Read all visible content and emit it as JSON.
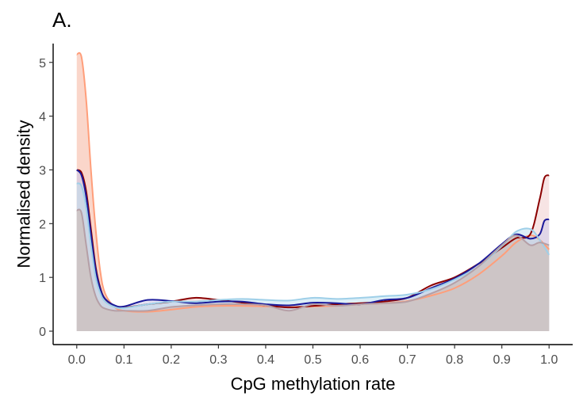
{
  "panel_label": "A.",
  "chart_data": {
    "type": "area",
    "title": "",
    "xlabel": "CpG methylation rate",
    "ylabel": "Normalised density",
    "xlim": [
      -0.05,
      1.05
    ],
    "ylim": [
      -0.25,
      5.35
    ],
    "x_ticks": [
      "0.0",
      "0.1",
      "0.2",
      "0.3",
      "0.4",
      "0.5",
      "0.6",
      "0.7",
      "0.8",
      "0.9",
      "1.0"
    ],
    "y_ticks": [
      "0",
      "1",
      "2",
      "3",
      "4",
      "5"
    ],
    "grid": false,
    "legend": "none",
    "series": [
      {
        "line_color": "#ff9e7a",
        "fill_color": "#f6b49e",
        "fill_opacity": 0.55,
        "points": [
          [
            0.0,
            5.15
          ],
          [
            0.01,
            5.1
          ],
          [
            0.02,
            4.3
          ],
          [
            0.03,
            3.0
          ],
          [
            0.04,
            1.9
          ],
          [
            0.05,
            1.1
          ],
          [
            0.06,
            0.7
          ],
          [
            0.08,
            0.45
          ],
          [
            0.1,
            0.38
          ],
          [
            0.15,
            0.36
          ],
          [
            0.2,
            0.4
          ],
          [
            0.25,
            0.45
          ],
          [
            0.3,
            0.47
          ],
          [
            0.35,
            0.47
          ],
          [
            0.4,
            0.46
          ],
          [
            0.45,
            0.45
          ],
          [
            0.5,
            0.46
          ],
          [
            0.55,
            0.47
          ],
          [
            0.6,
            0.5
          ],
          [
            0.65,
            0.52
          ],
          [
            0.7,
            0.56
          ],
          [
            0.75,
            0.66
          ],
          [
            0.8,
            0.8
          ],
          [
            0.85,
            1.05
          ],
          [
            0.9,
            1.4
          ],
          [
            0.93,
            1.65
          ],
          [
            0.96,
            1.78
          ],
          [
            0.98,
            1.7
          ],
          [
            1.0,
            1.52
          ]
        ]
      },
      {
        "line_color": "#8b0000",
        "fill_color": "#efc9c9",
        "fill_opacity": 0.5,
        "points": [
          [
            0.0,
            3.0
          ],
          [
            0.01,
            2.95
          ],
          [
            0.02,
            2.6
          ],
          [
            0.03,
            1.9
          ],
          [
            0.04,
            1.2
          ],
          [
            0.05,
            0.8
          ],
          [
            0.06,
            0.6
          ],
          [
            0.08,
            0.47
          ],
          [
            0.1,
            0.44
          ],
          [
            0.15,
            0.5
          ],
          [
            0.2,
            0.55
          ],
          [
            0.25,
            0.62
          ],
          [
            0.3,
            0.58
          ],
          [
            0.35,
            0.53
          ],
          [
            0.4,
            0.48
          ],
          [
            0.45,
            0.44
          ],
          [
            0.5,
            0.47
          ],
          [
            0.55,
            0.5
          ],
          [
            0.6,
            0.52
          ],
          [
            0.65,
            0.55
          ],
          [
            0.7,
            0.62
          ],
          [
            0.75,
            0.85
          ],
          [
            0.8,
            1.0
          ],
          [
            0.85,
            1.25
          ],
          [
            0.9,
            1.55
          ],
          [
            0.93,
            1.73
          ],
          [
            0.96,
            1.8
          ],
          [
            0.98,
            2.45
          ],
          [
            0.99,
            2.85
          ],
          [
            1.0,
            2.9
          ]
        ]
      },
      {
        "line_color": "#1a1a9a",
        "fill_color": "#c9c7ea",
        "fill_opacity": 0.5,
        "points": [
          [
            0.0,
            3.0
          ],
          [
            0.01,
            2.9
          ],
          [
            0.02,
            2.5
          ],
          [
            0.03,
            1.8
          ],
          [
            0.04,
            1.15
          ],
          [
            0.05,
            0.78
          ],
          [
            0.06,
            0.6
          ],
          [
            0.08,
            0.48
          ],
          [
            0.1,
            0.46
          ],
          [
            0.15,
            0.58
          ],
          [
            0.2,
            0.56
          ],
          [
            0.25,
            0.52
          ],
          [
            0.3,
            0.55
          ],
          [
            0.35,
            0.55
          ],
          [
            0.4,
            0.5
          ],
          [
            0.45,
            0.48
          ],
          [
            0.5,
            0.53
          ],
          [
            0.55,
            0.52
          ],
          [
            0.6,
            0.5
          ],
          [
            0.65,
            0.58
          ],
          [
            0.7,
            0.62
          ],
          [
            0.75,
            0.8
          ],
          [
            0.8,
            0.98
          ],
          [
            0.85,
            1.25
          ],
          [
            0.9,
            1.62
          ],
          [
            0.93,
            1.8
          ],
          [
            0.96,
            1.72
          ],
          [
            0.98,
            1.8
          ],
          [
            0.99,
            2.05
          ],
          [
            1.0,
            2.08
          ]
        ]
      },
      {
        "line_color": "#9ecfe8",
        "fill_color": "#bcdff0",
        "fill_opacity": 0.5,
        "points": [
          [
            0.0,
            2.75
          ],
          [
            0.01,
            2.7
          ],
          [
            0.02,
            2.3
          ],
          [
            0.03,
            1.6
          ],
          [
            0.04,
            1.0
          ],
          [
            0.05,
            0.7
          ],
          [
            0.06,
            0.55
          ],
          [
            0.08,
            0.45
          ],
          [
            0.1,
            0.43
          ],
          [
            0.15,
            0.5
          ],
          [
            0.2,
            0.55
          ],
          [
            0.25,
            0.55
          ],
          [
            0.3,
            0.58
          ],
          [
            0.35,
            0.6
          ],
          [
            0.4,
            0.58
          ],
          [
            0.45,
            0.57
          ],
          [
            0.5,
            0.62
          ],
          [
            0.55,
            0.6
          ],
          [
            0.6,
            0.62
          ],
          [
            0.65,
            0.65
          ],
          [
            0.7,
            0.68
          ],
          [
            0.75,
            0.78
          ],
          [
            0.8,
            0.96
          ],
          [
            0.85,
            1.2
          ],
          [
            0.9,
            1.58
          ],
          [
            0.93,
            1.85
          ],
          [
            0.96,
            1.9
          ],
          [
            0.98,
            1.7
          ],
          [
            1.0,
            1.42
          ]
        ]
      },
      {
        "line_color": "#b59fa6",
        "fill_color": "#ccc4c4",
        "fill_opacity": 0.95,
        "points": [
          [
            0.0,
            2.25
          ],
          [
            0.01,
            2.2
          ],
          [
            0.02,
            1.6
          ],
          [
            0.03,
            1.0
          ],
          [
            0.04,
            0.65
          ],
          [
            0.05,
            0.48
          ],
          [
            0.06,
            0.42
          ],
          [
            0.08,
            0.38
          ],
          [
            0.1,
            0.38
          ],
          [
            0.15,
            0.38
          ],
          [
            0.2,
            0.45
          ],
          [
            0.25,
            0.48
          ],
          [
            0.3,
            0.5
          ],
          [
            0.35,
            0.5
          ],
          [
            0.4,
            0.48
          ],
          [
            0.45,
            0.38
          ],
          [
            0.5,
            0.5
          ],
          [
            0.55,
            0.47
          ],
          [
            0.6,
            0.5
          ],
          [
            0.65,
            0.52
          ],
          [
            0.7,
            0.55
          ],
          [
            0.75,
            0.7
          ],
          [
            0.8,
            0.9
          ],
          [
            0.85,
            1.2
          ],
          [
            0.9,
            1.6
          ],
          [
            0.93,
            1.78
          ],
          [
            0.96,
            1.6
          ],
          [
            0.98,
            1.65
          ],
          [
            1.0,
            1.6
          ]
        ]
      }
    ]
  }
}
